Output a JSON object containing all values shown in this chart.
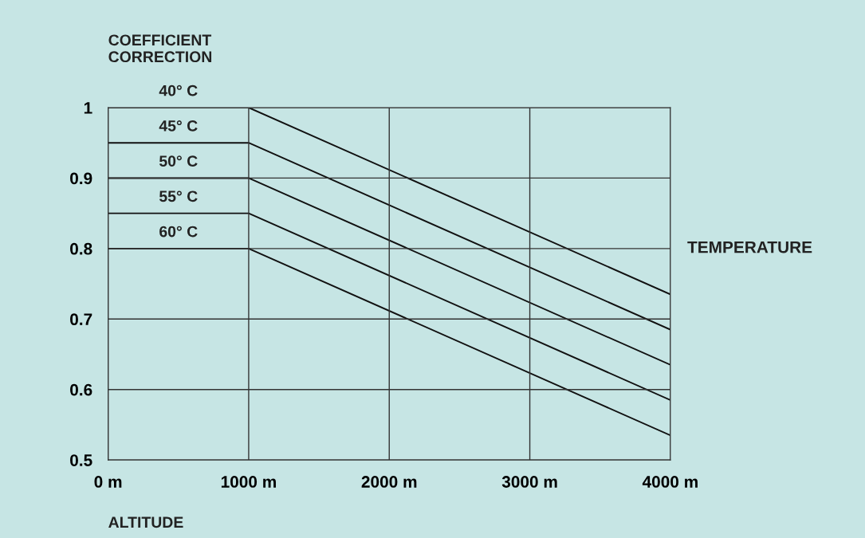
{
  "chart_data": {
    "type": "line",
    "ylabel": "COEFFICIENT\nCORRECTION",
    "xlabel": "ALTITUDE",
    "annotations": [
      "TEMPERATURE"
    ],
    "x": [
      0,
      1000,
      4000
    ],
    "series": [
      {
        "name": "40° C",
        "color": "#111111",
        "values": [
          1,
          1,
          0.735
        ]
      },
      {
        "name": "45° C",
        "color": "#111111",
        "values": [
          0.95,
          0.95,
          0.685
        ]
      },
      {
        "name": "50° C",
        "color": "#111111",
        "values": [
          0.9,
          0.9,
          0.635
        ]
      },
      {
        "name": "55° C",
        "color": "#111111",
        "values": [
          0.85,
          0.85,
          0.585
        ]
      },
      {
        "name": "60° C",
        "color": "#111111",
        "values": [
          0.8,
          0.8,
          0.535
        ]
      }
    ],
    "xlim": [
      0,
      4000
    ],
    "xticks": [
      {
        "value": 0,
        "label": "0 m"
      },
      {
        "value": 1000,
        "label": "1000 m"
      },
      {
        "value": 2000,
        "label": "2000 m"
      },
      {
        "value": 3000,
        "label": "3000 m"
      },
      {
        "value": 4000,
        "label": "4000 m"
      }
    ],
    "ylim": [
      0.5,
      1
    ],
    "yticks": [
      0.5,
      0.6,
      0.7,
      0.8,
      0.9,
      1
    ],
    "grid": true,
    "legend": false
  }
}
